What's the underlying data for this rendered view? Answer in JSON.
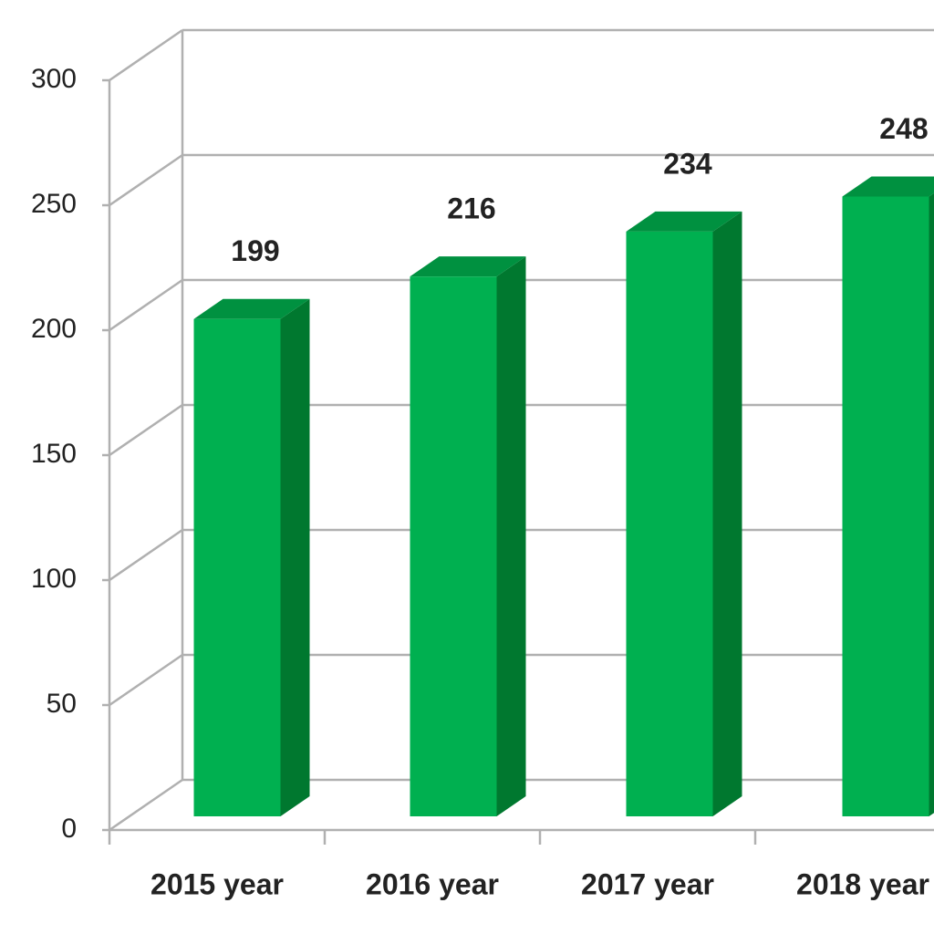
{
  "chart_data": {
    "type": "bar",
    "categories": [
      "2015 year",
      "2016 year",
      "2017 year",
      "2018 year"
    ],
    "values": [
      199,
      216,
      234,
      248
    ],
    "color": "#00b050",
    "ylim": [
      0,
      300
    ],
    "yticks": [
      0,
      50,
      100,
      150,
      200,
      250,
      300
    ],
    "grid": true
  }
}
